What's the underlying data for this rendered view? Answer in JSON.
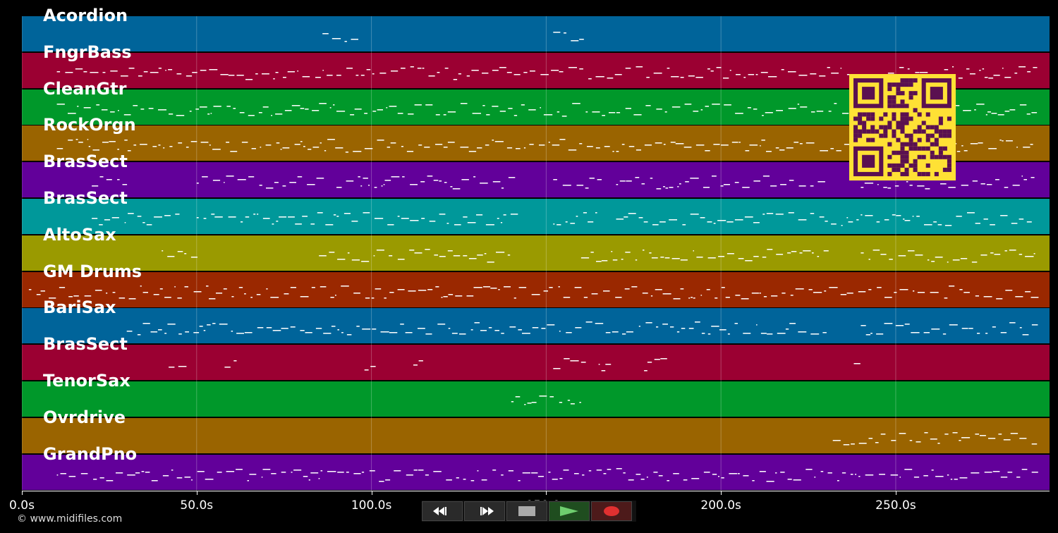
{
  "tracks": [
    {
      "name": "Acordion",
      "color": "#00649a"
    },
    {
      "name": "FngrBass",
      "color": "#9b0032"
    },
    {
      "name": "CleanGtr",
      "color": "#00982a"
    },
    {
      "name": "RockOrgn",
      "color": "#9a6400"
    },
    {
      "name": "BrasSect",
      "color": "#62009a"
    },
    {
      "name": "BrasSect",
      "color": "#00989a"
    },
    {
      "name": "AltoSax",
      "color": "#9a9a00"
    },
    {
      "name": "GM Drums",
      "color": "#9a2800"
    },
    {
      "name": "BariSax",
      "color": "#00649a"
    },
    {
      "name": "BrasSect",
      "color": "#9b0032"
    },
    {
      "name": "TenorSax",
      "color": "#00982a"
    },
    {
      "name": "Ovrdrive",
      "color": "#9a6400"
    },
    {
      "name": "GrandPno",
      "color": "#62009a"
    }
  ],
  "time_axis": {
    "max_seconds": 294,
    "ticks": [
      {
        "value": 0,
        "label": "0.0s"
      },
      {
        "value": 50,
        "label": "50.0s"
      },
      {
        "value": 100,
        "label": "100.0s"
      },
      {
        "value": 150,
        "label": "150.0s"
      },
      {
        "value": 200,
        "label": "200.0s"
      },
      {
        "value": 250,
        "label": "250.0s"
      }
    ]
  },
  "transport": {
    "buttons": [
      {
        "name": "rewind-button",
        "icon": "rewind-icon"
      },
      {
        "name": "fast-forward-button",
        "icon": "fast-forward-icon"
      },
      {
        "name": "stop-button",
        "icon": "stop-icon"
      },
      {
        "name": "play-button",
        "icon": "play-icon"
      },
      {
        "name": "record-button",
        "icon": "record-icon"
      }
    ]
  },
  "footer": {
    "copyright": "© www.midifiles.com"
  },
  "overlay": {
    "icon": "qr-code-icon",
    "color": "#ffe135"
  }
}
